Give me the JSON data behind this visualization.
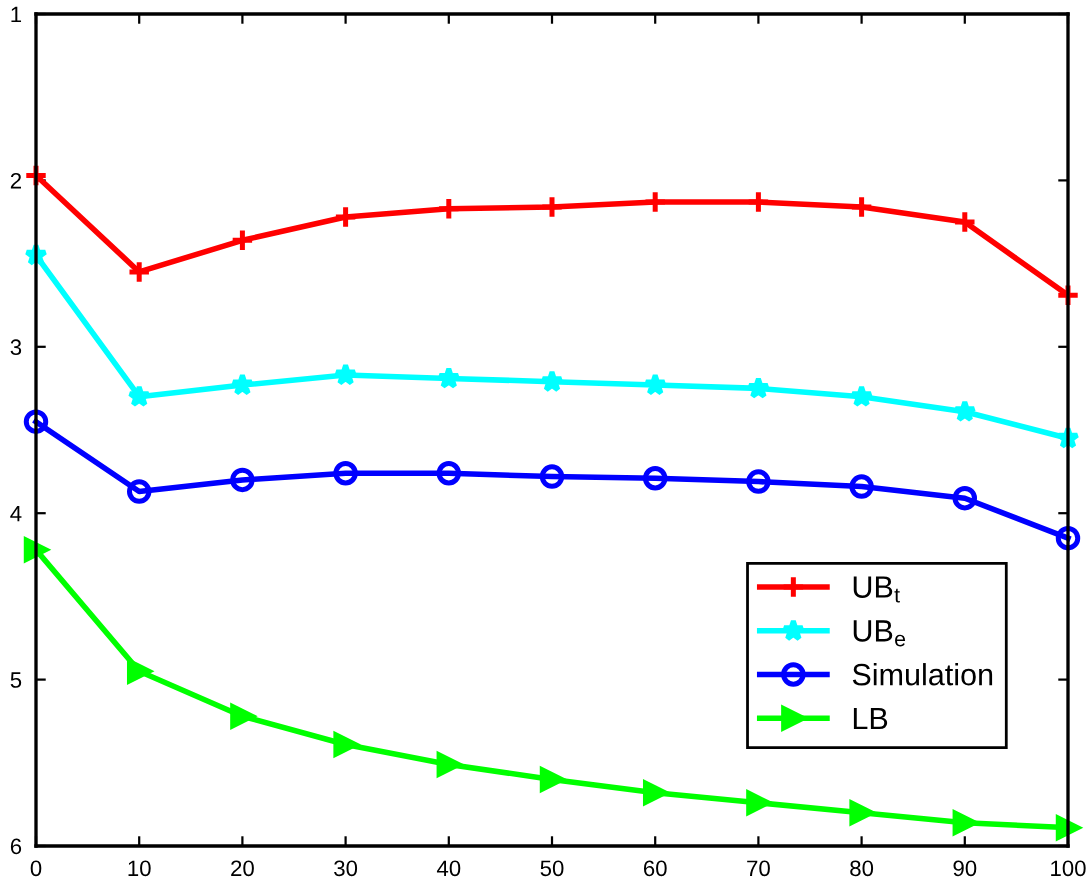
{
  "chart_data": {
    "type": "line",
    "x": [
      0,
      10,
      20,
      30,
      40,
      50,
      60,
      70,
      80,
      90,
      100
    ],
    "xlim": [
      0,
      100
    ],
    "xticks": [
      0,
      10,
      20,
      30,
      40,
      50,
      60,
      70,
      80,
      90,
      100
    ],
    "ylim": [
      6,
      1
    ],
    "yticks": [
      1,
      2,
      3,
      4,
      5,
      6
    ],
    "grid": false,
    "legend": "bottom right",
    "line_style": "solid",
    "series": [
      {
        "name": "UB$_{t}$",
        "color": "#ff0000",
        "marker": "cross",
        "values": [
          1.97,
          2.55,
          2.36,
          2.22,
          2.17,
          2.16,
          2.13,
          2.13,
          2.16,
          2.25,
          2.69
        ]
      },
      {
        "name": "UB$_{e}$",
        "color": "#00ffff",
        "marker": "star",
        "values": [
          2.45,
          3.3,
          3.23,
          3.17,
          3.19,
          3.21,
          3.23,
          3.25,
          3.3,
          3.39,
          3.55
        ]
      },
      {
        "name": "Simulation",
        "color": "#0000ff",
        "marker": "circle",
        "values": [
          3.45,
          3.87,
          3.8,
          3.76,
          3.76,
          3.78,
          3.79,
          3.81,
          3.84,
          3.91,
          4.15
        ]
      },
      {
        "name": "LB",
        "color": "#00ff00",
        "marker": "triangle",
        "values": [
          4.22,
          4.95,
          5.22,
          5.39,
          5.51,
          5.6,
          5.68,
          5.74,
          5.8,
          5.86,
          5.89
        ]
      }
    ]
  }
}
